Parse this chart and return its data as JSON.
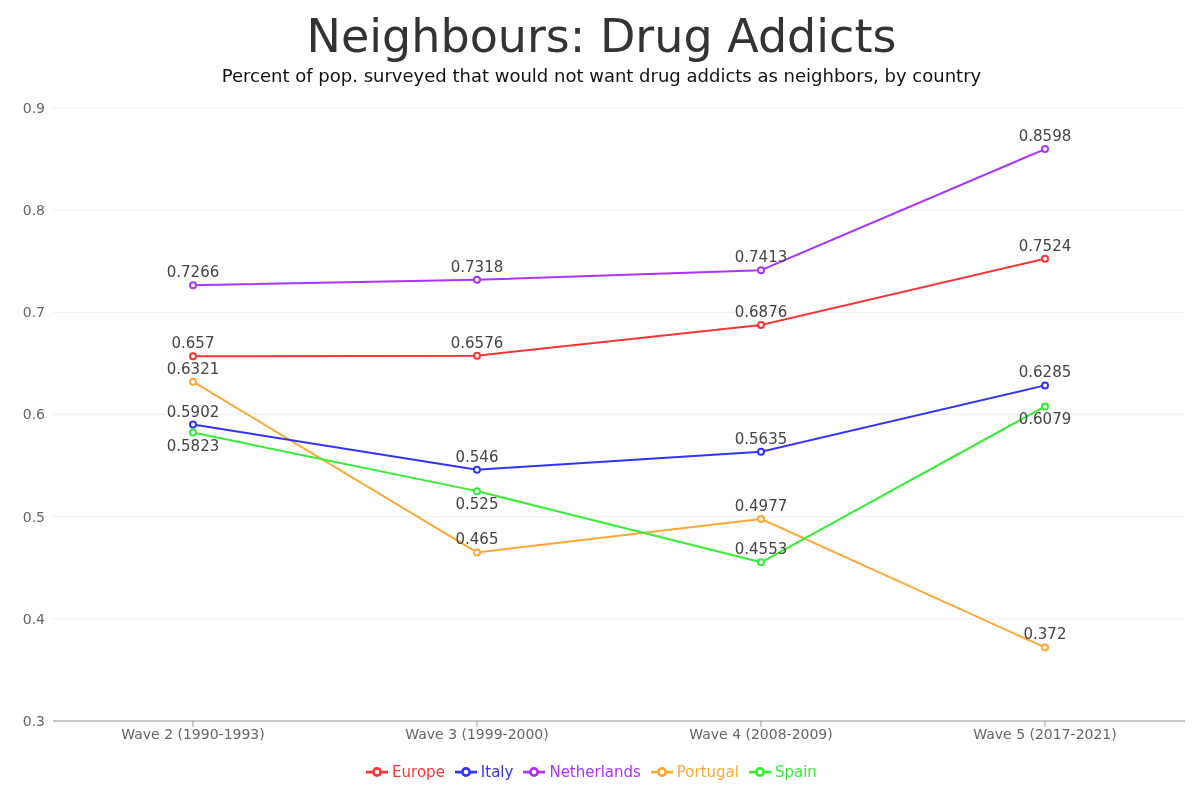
{
  "chart_data": {
    "type": "line",
    "title": "Neighbours: Drug Addicts",
    "subtitle": "Percent of pop. surveyed that would not want drug addicts as neighbors, by country",
    "categories": [
      "Wave 2 (1990-1993)",
      "Wave 3 (1999-2000)",
      "Wave 4 (2008-2009)",
      "Wave 5 (2017-2021)"
    ],
    "series": [
      {
        "name": "Europe",
        "color": "#ff3333",
        "values": [
          0.657,
          0.6576,
          0.6876,
          0.7524
        ]
      },
      {
        "name": "Portugal",
        "color": "#ffa733",
        "values": [
          0.6321,
          0.465,
          0.4977,
          0.372
        ]
      },
      {
        "name": "Netherlands",
        "color": "#aa33ff",
        "values": [
          0.7266,
          0.7318,
          0.7413,
          0.8598
        ]
      },
      {
        "name": "Spain",
        "color": "#33ee33",
        "values": [
          0.5823,
          0.525,
          0.4553,
          0.6079
        ]
      },
      {
        "name": "Italy",
        "color": "#3333ff",
        "values": [
          0.5902,
          0.546,
          0.5635,
          0.6285
        ]
      }
    ],
    "ylim": [
      0.3,
      0.9
    ],
    "yticks": [
      0.3,
      0.4,
      0.5,
      0.6,
      0.7,
      0.8,
      0.9
    ],
    "grid": "y",
    "legend": "bottom",
    "marker": "circle",
    "line_style": "solid",
    "data_labels": true
  }
}
